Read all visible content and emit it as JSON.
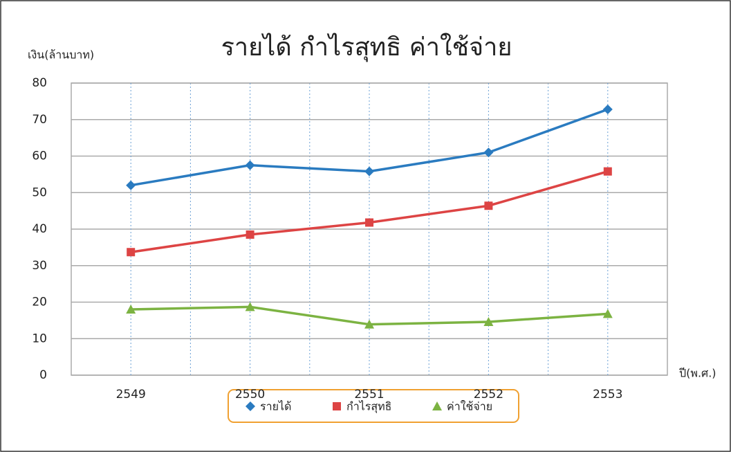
{
  "chart_data": {
    "type": "line",
    "title": "รายได้  กำไรสุทธิ  ค่าใช้จ่าย",
    "y_label": "เงิน(ล้านบาท)",
    "x_label": "ปี(พ.ศ.)",
    "categories": [
      "2549",
      "2550",
      "2551",
      "2552",
      "2553"
    ],
    "series": [
      {
        "name": "รายได้",
        "color": "#2a7bc0",
        "marker": "diamond",
        "values": [
          52,
          57.5,
          55.8,
          61,
          72.8
        ]
      },
      {
        "name": "กำไรสุทธิ",
        "color": "#dd4444",
        "marker": "square",
        "values": [
          33.7,
          38.5,
          41.8,
          46.4,
          55.8
        ]
      },
      {
        "name": "ค่าใช้จ่าย",
        "color": "#7cb342",
        "marker": "triangle",
        "values": [
          18,
          18.7,
          13.9,
          14.6,
          16.8
        ]
      }
    ],
    "ylim": [
      0,
      80
    ],
    "yticks": [
      0,
      10,
      20,
      30,
      40,
      50,
      60,
      70,
      80
    ],
    "grid": true,
    "legend": "bottom"
  }
}
